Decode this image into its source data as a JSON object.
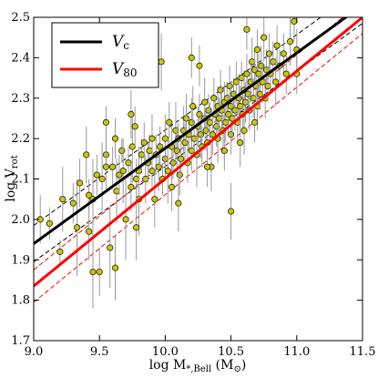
{
  "chart_data": {
    "type": "scatter",
    "xlabel": "log M*,Bell (M⊙)",
    "xlabel_parts": {
      "main": "log M",
      "sub": "*,Bell",
      "unit": " (M",
      "unit_sub": "⊙",
      "close": ")"
    },
    "ylabel": "log Vrot",
    "ylabel_parts": {
      "main": "log V",
      "sub": "rot"
    },
    "xlim": [
      9.0,
      11.5
    ],
    "ylim": [
      1.7,
      2.5
    ],
    "x_ticks": [
      9.0,
      9.5,
      10.0,
      10.5,
      11.0,
      11.5
    ],
    "x_tick_labels": [
      "9.0",
      "9.5",
      "10.0",
      "10.5",
      "11.0",
      "11.5"
    ],
    "y_ticks": [
      1.7,
      1.8,
      1.9,
      2.0,
      2.1,
      2.2,
      2.3,
      2.4,
      2.5
    ],
    "y_tick_labels": [
      "1.7",
      "1.8",
      "1.9",
      "2.0",
      "2.1",
      "2.2",
      "2.3",
      "2.4",
      "2.5"
    ],
    "grid": false,
    "legend_position": "top-left",
    "legend": [
      {
        "label": "V",
        "sub": "c",
        "color": "#000000"
      },
      {
        "label": "V",
        "sub": "80",
        "color": "#ff0000"
      }
    ],
    "fit_lines": [
      {
        "name": "Vc",
        "color": "#000000",
        "x": [
          9.0,
          11.5
        ],
        "y": [
          1.94,
          2.53
        ],
        "style": "solid",
        "scatter_offset": 0.045
      },
      {
        "name": "V80",
        "color": "#ff0000",
        "x": [
          9.0,
          11.5
        ],
        "y": [
          1.835,
          2.5
        ],
        "style": "solid",
        "scatter_offset": 0.04
      }
    ],
    "points_style": {
      "fill": "#c8c800",
      "stroke": "#222222",
      "errorbar": "#999999"
    },
    "points": [
      [
        9.05,
        2.0,
        0.02,
        0.06
      ],
      [
        9.12,
        1.99,
        0.02,
        0.04
      ],
      [
        9.2,
        1.92,
        0.02,
        0.03
      ],
      [
        9.22,
        2.05,
        0.02,
        0.08
      ],
      [
        9.3,
        2.04,
        0.02,
        0.05
      ],
      [
        9.33,
        1.98,
        0.02,
        0.12
      ],
      [
        9.35,
        2.09,
        0.02,
        0.06
      ],
      [
        9.4,
        2.16,
        0.02,
        0.07
      ],
      [
        9.42,
        2.06,
        0.02,
        0.04
      ],
      [
        9.45,
        2.05,
        0.02,
        0.1
      ],
      [
        9.45,
        1.87,
        0.02,
        0.09
      ],
      [
        9.48,
        2.11,
        0.02,
        0.05
      ],
      [
        9.5,
        1.87,
        0.02,
        0.06
      ],
      [
        9.52,
        2.1,
        0.02,
        0.09
      ],
      [
        9.55,
        2.24,
        0.02,
        0.04
      ],
      [
        9.55,
        2.16,
        0.02,
        0.06
      ],
      [
        9.58,
        1.93,
        0.02,
        0.1
      ],
      [
        9.6,
        2.13,
        0.02,
        0.05
      ],
      [
        9.62,
        2.2,
        0.02,
        0.05
      ],
      [
        9.63,
        2.07,
        0.02,
        0.08
      ],
      [
        9.65,
        2.11,
        0.02,
        0.05
      ],
      [
        9.67,
        2.17,
        0.02,
        0.03
      ],
      [
        9.68,
        2.12,
        0.02,
        0.08
      ],
      [
        9.7,
        2.0,
        0.02,
        0.1
      ],
      [
        9.72,
        2.14,
        0.02,
        0.04
      ],
      [
        9.74,
        2.08,
        0.02,
        0.06
      ],
      [
        9.75,
        2.18,
        0.02,
        0.09
      ],
      [
        9.77,
        2.23,
        0.02,
        0.05
      ],
      [
        9.78,
        2.1,
        0.02,
        0.05
      ],
      [
        9.8,
        2.12,
        0.02,
        0.06
      ],
      [
        9.8,
        2.05,
        0.02,
        0.09
      ],
      [
        9.82,
        2.16,
        0.02,
        0.04
      ],
      [
        9.84,
        2.19,
        0.02,
        0.05
      ],
      [
        9.85,
        2.1,
        0.02,
        0.06
      ],
      [
        9.87,
        2.14,
        0.02,
        0.05
      ],
      [
        9.88,
        2.17,
        0.02,
        0.04
      ],
      [
        9.9,
        2.2,
        0.02,
        0.06
      ],
      [
        9.9,
        2.12,
        0.02,
        0.04
      ],
      [
        9.92,
        2.05,
        0.02,
        0.07
      ],
      [
        9.93,
        2.16,
        0.02,
        0.05
      ],
      [
        9.95,
        2.13,
        0.02,
        0.06
      ],
      [
        9.96,
        2.18,
        0.02,
        0.05
      ],
      [
        9.98,
        2.1,
        0.02,
        0.04
      ],
      [
        10.0,
        2.15,
        0.02,
        0.05
      ],
      [
        10.0,
        2.2,
        0.02,
        0.06
      ],
      [
        10.02,
        2.12,
        0.02,
        0.08
      ],
      [
        10.03,
        2.24,
        0.02,
        0.05
      ],
      [
        10.05,
        2.18,
        0.02,
        0.05
      ],
      [
        10.06,
        2.14,
        0.02,
        0.04
      ],
      [
        10.08,
        2.22,
        0.02,
        0.07
      ],
      [
        10.09,
        2.17,
        0.02,
        0.06
      ],
      [
        10.1,
        2.2,
        0.02,
        0.04
      ],
      [
        10.11,
        2.11,
        0.02,
        0.05
      ],
      [
        10.12,
        2.15,
        0.02,
        0.05
      ],
      [
        10.14,
        2.22,
        0.02,
        0.06
      ],
      [
        10.15,
        2.19,
        0.02,
        0.05
      ],
      [
        10.16,
        2.25,
        0.02,
        0.06
      ],
      [
        10.17,
        2.14,
        0.02,
        0.05
      ],
      [
        10.18,
        2.21,
        0.02,
        0.04
      ],
      [
        10.2,
        2.17,
        0.02,
        0.05
      ],
      [
        10.2,
        2.24,
        0.02,
        0.06
      ],
      [
        10.21,
        2.28,
        0.02,
        0.05
      ],
      [
        10.22,
        2.2,
        0.02,
        0.04
      ],
      [
        10.24,
        2.16,
        0.02,
        0.08
      ],
      [
        10.25,
        2.23,
        0.02,
        0.05
      ],
      [
        10.26,
        2.26,
        0.02,
        0.05
      ],
      [
        10.27,
        2.21,
        0.02,
        0.06
      ],
      [
        10.28,
        2.18,
        0.02,
        0.05
      ],
      [
        10.3,
        2.25,
        0.02,
        0.04
      ],
      [
        10.3,
        2.29,
        0.02,
        0.06
      ],
      [
        10.31,
        2.22,
        0.02,
        0.05
      ],
      [
        10.32,
        2.19,
        0.02,
        0.07
      ],
      [
        10.33,
        2.27,
        0.02,
        0.04
      ],
      [
        10.34,
        2.24,
        0.02,
        0.05
      ],
      [
        10.35,
        2.13,
        0.02,
        0.06
      ],
      [
        10.36,
        2.21,
        0.02,
        0.05
      ],
      [
        10.37,
        2.3,
        0.02,
        0.05
      ],
      [
        10.38,
        2.26,
        0.02,
        0.04
      ],
      [
        10.39,
        2.23,
        0.02,
        0.05
      ],
      [
        10.4,
        2.28,
        0.02,
        0.05
      ],
      [
        10.4,
        2.2,
        0.02,
        0.06
      ],
      [
        10.41,
        2.25,
        0.02,
        0.05
      ],
      [
        10.42,
        2.32,
        0.02,
        0.05
      ],
      [
        10.43,
        2.27,
        0.02,
        0.06
      ],
      [
        10.44,
        2.22,
        0.02,
        0.04
      ],
      [
        10.45,
        2.29,
        0.02,
        0.05
      ],
      [
        10.46,
        2.24,
        0.02,
        0.05
      ],
      [
        10.47,
        2.3,
        0.02,
        0.04
      ],
      [
        10.48,
        2.26,
        0.02,
        0.05
      ],
      [
        10.49,
        2.33,
        0.02,
        0.05
      ],
      [
        10.5,
        2.28,
        0.02,
        0.06
      ],
      [
        10.5,
        2.21,
        0.02,
        0.05
      ],
      [
        10.5,
        2.02,
        0.02,
        0.07
      ],
      [
        10.51,
        2.25,
        0.02,
        0.05
      ],
      [
        10.52,
        2.31,
        0.02,
        0.04
      ],
      [
        10.53,
        2.27,
        0.02,
        0.05
      ],
      [
        10.54,
        2.34,
        0.02,
        0.05
      ],
      [
        10.55,
        2.24,
        0.02,
        0.05
      ],
      [
        10.56,
        2.3,
        0.02,
        0.06
      ],
      [
        10.57,
        2.28,
        0.02,
        0.05
      ],
      [
        10.58,
        2.35,
        0.02,
        0.04
      ],
      [
        10.59,
        2.26,
        0.02,
        0.05
      ],
      [
        10.6,
        2.32,
        0.02,
        0.05
      ],
      [
        10.6,
        2.22,
        0.02,
        0.06
      ],
      [
        10.61,
        2.29,
        0.02,
        0.05
      ],
      [
        10.62,
        2.36,
        0.02,
        0.05
      ],
      [
        10.63,
        2.31,
        0.02,
        0.04
      ],
      [
        10.64,
        2.27,
        0.02,
        0.05
      ],
      [
        10.65,
        2.34,
        0.02,
        0.05
      ],
      [
        10.66,
        2.39,
        0.02,
        0.06
      ],
      [
        10.67,
        2.3,
        0.02,
        0.05
      ],
      [
        10.68,
        2.37,
        0.02,
        0.05
      ],
      [
        10.69,
        2.33,
        0.02,
        0.04
      ],
      [
        10.7,
        2.28,
        0.02,
        0.06
      ],
      [
        10.7,
        2.42,
        0.02,
        0.05
      ],
      [
        10.71,
        2.36,
        0.02,
        0.05
      ],
      [
        10.72,
        2.31,
        0.02,
        0.04
      ],
      [
        10.73,
        2.38,
        0.02,
        0.05
      ],
      [
        10.74,
        2.34,
        0.02,
        0.05
      ],
      [
        10.75,
        2.45,
        0.02,
        0.06
      ],
      [
        10.76,
        2.3,
        0.02,
        0.05
      ],
      [
        10.77,
        2.37,
        0.02,
        0.05
      ],
      [
        10.78,
        2.33,
        0.02,
        0.04
      ],
      [
        10.79,
        2.41,
        0.02,
        0.05
      ],
      [
        10.8,
        2.36,
        0.02,
        0.05
      ],
      [
        10.82,
        2.39,
        0.02,
        0.05
      ],
      [
        10.84,
        2.34,
        0.02,
        0.06
      ],
      [
        10.85,
        2.43,
        0.02,
        0.05
      ],
      [
        10.87,
        2.38,
        0.02,
        0.04
      ],
      [
        10.9,
        2.41,
        0.02,
        0.05
      ],
      [
        10.92,
        2.36,
        0.02,
        0.05
      ],
      [
        10.95,
        2.44,
        0.02,
        0.06
      ],
      [
        10.98,
        2.49,
        0.02,
        0.05
      ],
      [
        11.0,
        2.36,
        0.02,
        0.05
      ],
      [
        11.0,
        2.42,
        0.02,
        0.05
      ],
      [
        10.62,
        2.47,
        0.02,
        0.05
      ],
      [
        9.97,
        2.39,
        0.02,
        0.07
      ],
      [
        9.74,
        2.26,
        0.02,
        0.06
      ],
      [
        10.26,
        2.38,
        0.02,
        0.05
      ],
      [
        10.2,
        2.4,
        0.02,
        0.05
      ],
      [
        9.55,
        2.13,
        0.02,
        0.06
      ],
      [
        9.42,
        1.97,
        0.02,
        0.07
      ],
      [
        9.62,
        1.88,
        0.02,
        0.08
      ],
      [
        9.78,
        1.98,
        0.02,
        0.08
      ],
      [
        10.1,
        2.04,
        0.02,
        0.07
      ],
      [
        10.32,
        2.13,
        0.02,
        0.05
      ],
      [
        10.45,
        2.17,
        0.02,
        0.05
      ],
      [
        10.57,
        2.19,
        0.02,
        0.06
      ],
      [
        10.68,
        2.24,
        0.02,
        0.05
      ],
      [
        10.05,
        2.08,
        0.02,
        0.06
      ]
    ]
  }
}
